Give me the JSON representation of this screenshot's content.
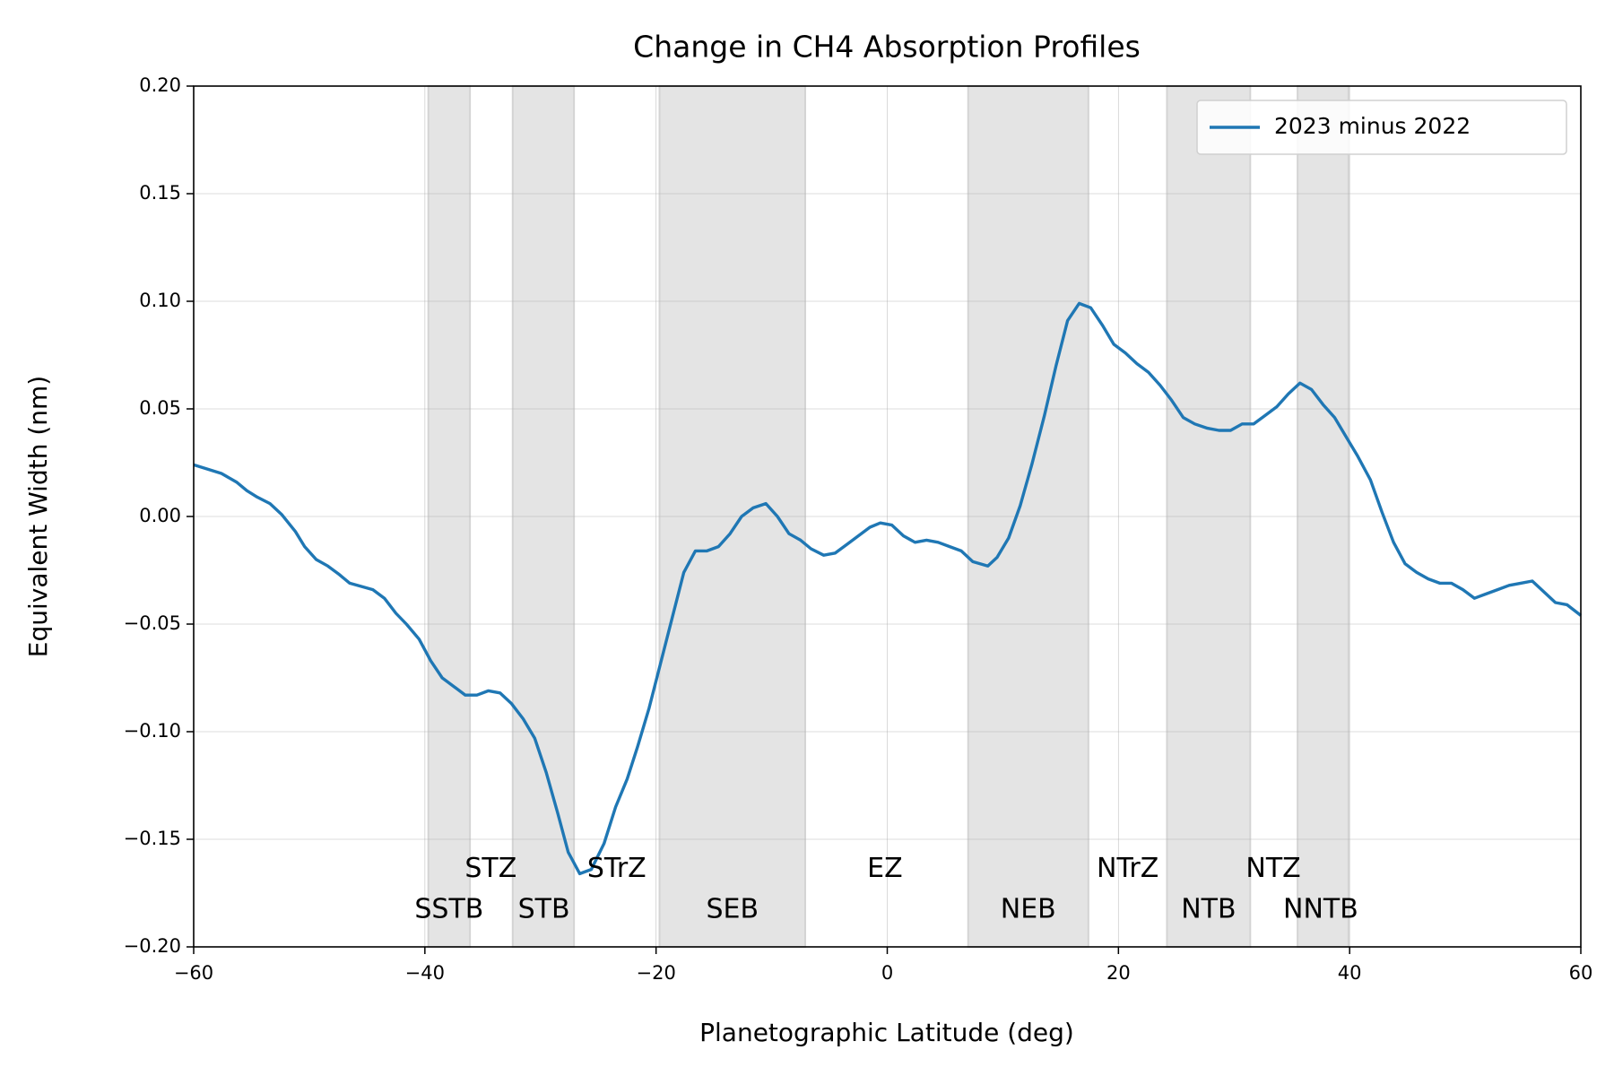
{
  "chart_data": {
    "type": "line",
    "title": "Change in CH4 Absorption Profiles",
    "x_label": "Planetographic Latitude (deg)",
    "y_label": "Equivalent Width (nm)",
    "x": [
      -60,
      -57.6,
      -56.3,
      -55.4,
      -54.5,
      -53.4,
      -52.4,
      -51.2,
      -50.4,
      -49.4,
      -48.4,
      -47.4,
      -46.5,
      -44.5,
      -43.5,
      -42.5,
      -41.6,
      -40.5,
      -39.5,
      -38.5,
      -37.5,
      -36.5,
      -35.5,
      -34.5,
      -33.5,
      -32.5,
      -31.5,
      -30.5,
      -29.5,
      -28.5,
      -27.6,
      -26.6,
      -25.6,
      -24.5,
      -23.5,
      -22.5,
      -21.6,
      -20.6,
      -19.6,
      -18.6,
      -17.6,
      -16.6,
      -15.6,
      -14.6,
      -13.6,
      -12.6,
      -11.6,
      -10.5,
      -9.5,
      -8.5,
      -7.5,
      -6.6,
      -5.5,
      -4.5,
      -3.5,
      -2.5,
      -1.5,
      -0.6,
      0.4,
      1.4,
      2.4,
      3.4,
      4.4,
      5.4,
      6.4,
      7.4,
      8.7,
      9.5,
      10.5,
      11.5,
      12.5,
      13.6,
      14.6,
      15.6,
      16.6,
      17.6,
      18.6,
      19.6,
      20.6,
      21.6,
      22.6,
      23.6,
      24.6,
      25.6,
      26.6,
      27.7,
      28.7,
      29.7,
      30.7,
      31.7,
      32.7,
      33.7,
      34.7,
      35.7,
      36.7,
      37.7,
      38.7,
      39.7,
      40.7,
      41.8,
      42.8,
      43.8,
      44.8,
      45.8,
      46.8,
      47.8,
      48.8,
      49.8,
      50.8,
      51.8,
      52.8,
      53.8,
      54.8,
      55.8,
      56.8,
      57.8,
      58.8,
      60
    ],
    "series": [
      {
        "name": "2023 minus 2022",
        "color": "#1f77b4",
        "values": [
          0.024,
          0.02,
          0.016,
          0.012,
          0.009,
          0.006,
          0.001,
          -0.007,
          -0.014,
          -0.02,
          -0.023,
          -0.027,
          -0.031,
          -0.034,
          -0.038,
          -0.045,
          -0.05,
          -0.057,
          -0.067,
          -0.075,
          -0.079,
          -0.083,
          -0.083,
          -0.081,
          -0.082,
          -0.087,
          -0.094,
          -0.103,
          -0.119,
          -0.138,
          -0.156,
          -0.166,
          -0.164,
          -0.152,
          -0.135,
          -0.122,
          -0.107,
          -0.089,
          -0.068,
          -0.047,
          -0.026,
          -0.016,
          -0.016,
          -0.014,
          -0.008,
          0.0,
          0.004,
          0.006,
          0.0,
          -0.008,
          -0.011,
          -0.015,
          -0.018,
          -0.017,
          -0.013,
          -0.009,
          -0.005,
          -0.003,
          -0.004,
          -0.009,
          -0.012,
          -0.011,
          -0.012,
          -0.014,
          -0.016,
          -0.021,
          -0.023,
          -0.019,
          -0.01,
          0.005,
          0.024,
          0.047,
          0.07,
          0.091,
          0.099,
          0.097,
          0.089,
          0.08,
          0.076,
          0.071,
          0.067,
          0.061,
          0.054,
          0.046,
          0.043,
          0.041,
          0.04,
          0.04,
          0.043,
          0.043,
          0.047,
          0.051,
          0.057,
          0.062,
          0.059,
          0.052,
          0.046,
          0.037,
          0.028,
          0.017,
          0.002,
          -0.012,
          -0.022,
          -0.026,
          -0.029,
          -0.031,
          -0.031,
          -0.034,
          -0.038,
          -0.036,
          -0.034,
          -0.032,
          -0.031,
          -0.03,
          -0.035,
          -0.04,
          -0.041,
          -0.046
        ]
      }
    ],
    "bands": [
      [
        -39.7,
        -36.1
      ],
      [
        -32.4,
        -27.1
      ],
      [
        -19.7,
        -7.1
      ],
      [
        7.0,
        17.4
      ],
      [
        24.2,
        31.4
      ],
      [
        35.5,
        39.9
      ]
    ],
    "band_color": "#e4e4e4",
    "annotations": [
      {
        "text": "STZ",
        "x": -34.3,
        "y": -0.164
      },
      {
        "text": "STrZ",
        "x": -23.4,
        "y": -0.164
      },
      {
        "text": "EZ",
        "x": -0.2,
        "y": -0.164
      },
      {
        "text": "NTrZ",
        "x": 20.8,
        "y": -0.164
      },
      {
        "text": "NTZ",
        "x": 33.4,
        "y": -0.164
      },
      {
        "text": "SSTB",
        "x": -37.9,
        "y": -0.183
      },
      {
        "text": "STB",
        "x": -29.7,
        "y": -0.183
      },
      {
        "text": "SEB",
        "x": -13.4,
        "y": -0.183
      },
      {
        "text": "NEB",
        "x": 12.2,
        "y": -0.183
      },
      {
        "text": "NTB",
        "x": 27.8,
        "y": -0.183
      },
      {
        "text": "NNTB",
        "x": 37.5,
        "y": -0.183
      }
    ],
    "xlim": [
      -60,
      60
    ],
    "xticks": [
      {
        "value": -60,
        "label": "−60"
      },
      {
        "value": -40,
        "label": "−40"
      },
      {
        "value": -20,
        "label": "−20"
      },
      0,
      20,
      40,
      60
    ],
    "ylim": [
      -0.2,
      0.2
    ],
    "yticks": [
      {
        "value": -0.2,
        "label": "−0.20"
      },
      {
        "value": -0.15,
        "label": "−0.15"
      },
      {
        "value": -0.1,
        "label": "−0.10"
      },
      {
        "value": -0.05,
        "label": "−0.05"
      },
      {
        "value": 0,
        "label": "0.00"
      },
      {
        "value": 0.05,
        "label": "0.05"
      },
      {
        "value": 0.1,
        "label": "0.10"
      },
      {
        "value": 0.15,
        "label": "0.15"
      },
      {
        "value": 0.2,
        "label": "0.20"
      }
    ],
    "grid": true,
    "legend": "upper right"
  }
}
